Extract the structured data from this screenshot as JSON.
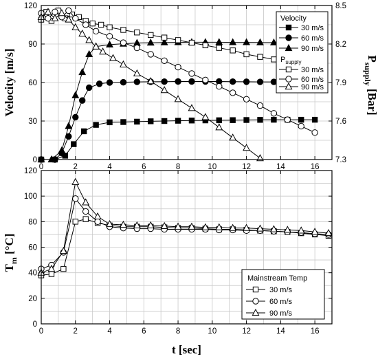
{
  "chart_data": [
    {
      "type": "line",
      "panel": "top",
      "x_range": [
        0,
        17
      ],
      "x_ticks": [
        0,
        2,
        4,
        6,
        8,
        10,
        12,
        14,
        16
      ],
      "y_left": {
        "label": "Velocity",
        "unit": "[m/s]",
        "range": [
          0,
          120
        ],
        "ticks": [
          0,
          30,
          60,
          90,
          120
        ]
      },
      "y_right": {
        "label_main": "P",
        "label_sub": "supply",
        "unit": "[Bar]",
        "range": [
          7.3,
          8.5
        ],
        "ticks": [
          "7.3",
          "7.6",
          "7.9",
          "8.2",
          "8.5"
        ]
      },
      "grid": true,
      "legend": {
        "position": "top-right",
        "title": "Velocity",
        "subtitle_main": "P",
        "subtitle_sub": "supply",
        "entries": [
          {
            "label": "30 m/s",
            "series": "Velocity 30 m/s"
          },
          {
            "label": "60 m/s",
            "series": "Velocity 60 m/s"
          },
          {
            "label": "90 m/s",
            "series": "Velocity 90 m/s"
          },
          {
            "label": "30 m/s",
            "series": "Psupply 30 m/s"
          },
          {
            "label": "60 m/s",
            "series": "Psupply 60 m/s"
          },
          {
            "label": "90 m/s",
            "series": "Psupply 90 m/s"
          }
        ]
      },
      "series": [
        {
          "name": "Velocity 30 m/s",
          "axis": "left",
          "marker": "square-filled",
          "x": [
            0,
            0.8,
            1.4,
            1.9,
            2.5,
            3.2,
            4,
            4.8,
            5.6,
            6.4,
            7.2,
            8,
            8.8,
            9.6,
            10.4,
            11.2,
            12,
            12.8,
            13.6,
            14.4,
            15.2,
            16
          ],
          "y": [
            0,
            0,
            3,
            12,
            22,
            27,
            29,
            29.2,
            29.5,
            29.8,
            30,
            30.2,
            30.4,
            30.5,
            30.6,
            30.7,
            30.8,
            30.9,
            31,
            31,
            31,
            31
          ]
        },
        {
          "name": "Velocity 60 m/s",
          "axis": "left",
          "marker": "circle-filled",
          "x": [
            0,
            0.8,
            1.2,
            1.6,
            2,
            2.4,
            2.8,
            3.4,
            4,
            4.8,
            5.6,
            6.4,
            7.2,
            8,
            8.8,
            9.6,
            10.4,
            11.2,
            12,
            12.8,
            13.6,
            14.4
          ],
          "y": [
            0,
            0,
            5,
            18,
            33,
            46,
            56,
            59,
            60,
            60.2,
            60.5,
            60.6,
            60.7,
            60.8,
            60.8,
            60.8,
            60.8,
            60.7,
            60.6,
            60.5,
            60.5,
            60.3
          ]
        },
        {
          "name": "Velocity 90 m/s",
          "axis": "left",
          "marker": "triangle-filled",
          "x": [
            0,
            0.6,
            1.2,
            1.6,
            2,
            2.4,
            2.8,
            3.2,
            4,
            4.8,
            5.6,
            6.4,
            7.2,
            8,
            8.8,
            9.6,
            10.4,
            11.2,
            12,
            12.8,
            13.6,
            14.2
          ],
          "y": [
            0,
            0,
            7,
            26,
            50,
            68,
            82,
            88,
            89.5,
            90.2,
            90.8,
            91,
            91.2,
            91.3,
            91.4,
            91.4,
            91.4,
            91.3,
            91.3,
            91.2,
            91.1,
            91
          ]
        },
        {
          "name": "Psupply 30 m/s",
          "axis": "right",
          "marker": "square-open",
          "x": [
            0,
            0.3,
            0.6,
            1.0,
            1.4,
            1.8,
            2.2,
            2.6,
            3.0,
            3.5,
            4,
            4.8,
            5.6,
            6.4,
            7.2,
            8,
            8.8,
            9.6,
            10.4,
            11.2,
            12,
            12.8,
            13.6,
            14.4,
            15.2,
            16
          ],
          "y": [
            8.39,
            8.45,
            8.38,
            8.46,
            8.4,
            8.43,
            8.41,
            8.38,
            8.36,
            8.35,
            8.33,
            8.31,
            8.29,
            8.27,
            8.25,
            8.23,
            8.21,
            8.19,
            8.17,
            8.15,
            8.12,
            8.1,
            8.08,
            8.05,
            8.03,
            8.01
          ]
        },
        {
          "name": "Psupply 60 m/s",
          "axis": "right",
          "marker": "circle-open",
          "x": [
            0,
            0.4,
            0.8,
            1.2,
            1.6,
            2.0,
            2.6,
            3.2,
            4,
            4.8,
            5.6,
            6.4,
            7.2,
            8,
            8.8,
            9.6,
            10.4,
            11.2,
            12,
            12.8,
            13.6,
            14.4,
            15.2,
            16
          ],
          "y": [
            8.44,
            8.4,
            8.45,
            8.41,
            8.46,
            8.4,
            8.35,
            8.3,
            8.26,
            8.21,
            8.17,
            8.12,
            8.07,
            8.02,
            7.97,
            7.92,
            7.87,
            7.82,
            7.77,
            7.72,
            7.66,
            7.61,
            7.56,
            7.51
          ]
        },
        {
          "name": "Psupply 90 m/s",
          "axis": "right",
          "marker": "triangle-open",
          "x": [
            0,
            0.4,
            0.8,
            1.2,
            1.6,
            2.0,
            2.4,
            2.8,
            3.2,
            3.6,
            4.2,
            4.8,
            5.6,
            6.4,
            7.2,
            8,
            8.8,
            9.6,
            10.4,
            11.2,
            12,
            12.8
          ],
          "y": [
            8.41,
            8.45,
            8.4,
            8.44,
            8.39,
            8.33,
            8.28,
            8.23,
            8.18,
            8.14,
            8.09,
            8.04,
            7.97,
            7.91,
            7.84,
            7.77,
            7.7,
            7.63,
            7.55,
            7.47,
            7.39,
            7.31
          ]
        }
      ]
    },
    {
      "type": "line",
      "panel": "bottom",
      "x_range": [
        0,
        17
      ],
      "x_ticks": [
        0,
        2,
        4,
        6,
        8,
        10,
        12,
        14,
        16
      ],
      "xlabel": "t [sec]",
      "y_left": {
        "label_main": "T",
        "label_sub": "m",
        "unit": "[°C]",
        "range": [
          0,
          120
        ],
        "ticks": [
          0,
          20,
          40,
          60,
          80,
          100,
          120
        ]
      },
      "grid": true,
      "legend": {
        "position": "bottom-right",
        "title": "Mainstream Temp",
        "entries": [
          {
            "label": "30 m/s",
            "series": "Tm 30 m/s"
          },
          {
            "label": "60 m/s",
            "series": "Tm 60 m/s"
          },
          {
            "label": "90 m/s",
            "series": "Tm 90 m/s"
          }
        ]
      },
      "series": [
        {
          "name": "Tm 30 m/s",
          "axis": "left",
          "marker": "square-open",
          "x": [
            0,
            0.6,
            1.3,
            2.0,
            2.6,
            3.3,
            4,
            4.8,
            5.6,
            6.4,
            7.2,
            8,
            8.8,
            9.6,
            10.4,
            11.2,
            12,
            12.8,
            13.6,
            14.4,
            15.2,
            16,
            16.8
          ],
          "y": [
            38,
            39,
            43,
            80,
            82,
            79,
            77,
            76,
            76,
            76,
            75.5,
            75,
            75,
            74.5,
            74,
            74,
            73.5,
            73,
            72.5,
            72,
            71,
            70,
            69
          ]
        },
        {
          "name": "Tm 60 m/s",
          "axis": "left",
          "marker": "circle-open",
          "x": [
            0,
            0.6,
            1.3,
            2.0,
            2.6,
            3.3,
            4,
            4.8,
            5.6,
            6.4,
            7.2,
            8,
            8.8,
            9.6,
            10.4,
            11.2,
            12,
            12.8,
            13.6,
            14.4,
            15.2,
            16,
            16.8
          ],
          "y": [
            43,
            46,
            56,
            98,
            88,
            80,
            76,
            75,
            74.5,
            74.5,
            74,
            74,
            74,
            74,
            73.5,
            73.5,
            73,
            73,
            72.5,
            72,
            71.5,
            70.5,
            70
          ]
        },
        {
          "name": "Tm 90 m/s",
          "axis": "left",
          "marker": "triangle-open",
          "x": [
            0,
            0.6,
            1.3,
            2.0,
            2.6,
            3.3,
            4,
            4.8,
            5.6,
            6.4,
            7.2,
            8,
            8.8,
            9.6,
            10.4,
            11.2,
            12,
            12.8,
            13.6,
            14.4,
            15.2,
            16,
            16.8
          ],
          "y": [
            40,
            43,
            57,
            111,
            95,
            84,
            78,
            77.5,
            77,
            77,
            76.5,
            76,
            76,
            75.5,
            75.5,
            75,
            75,
            74.5,
            74,
            73.5,
            73,
            72,
            71
          ]
        }
      ]
    }
  ]
}
